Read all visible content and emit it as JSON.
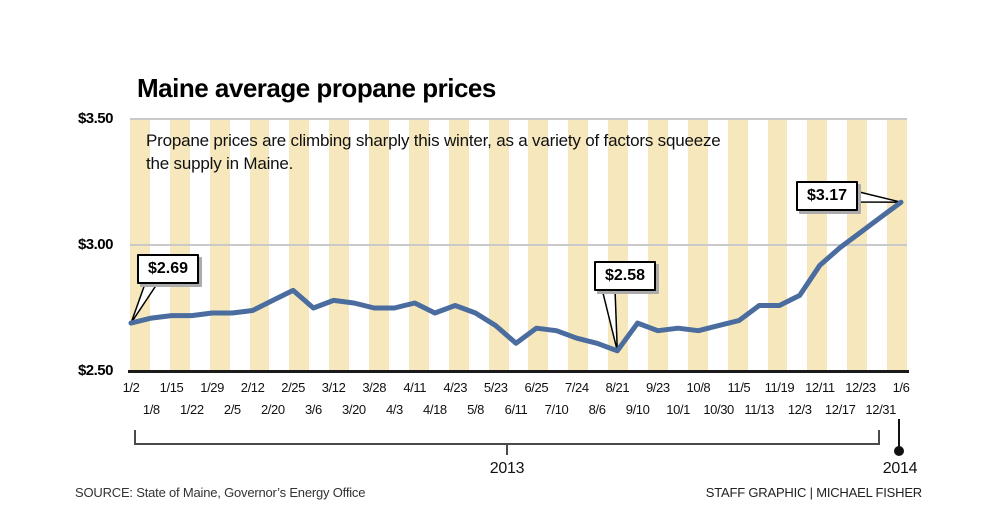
{
  "title": "Maine average propane prices",
  "subtitle": "Propane prices are climbing sharply this winter, as a variety of factors squeeze\nthe supply in Maine.",
  "source": "SOURCE: State of Maine, Governor’s Energy Office",
  "credit": "STAFF GRAPHIC | MICHAEL FISHER",
  "colors": {
    "stripe": "#F6E8BC",
    "stripe_alt": "#FFFFFF",
    "line": "#4B6C9E",
    "gridline": "#C9C9C9",
    "axis": "#1A1A1A"
  },
  "y_axis": {
    "ticks": [
      "$3.50",
      "$3.00",
      "$2.50"
    ]
  },
  "timeline": {
    "bracket_year": "2013",
    "end_year": "2014"
  },
  "chart_data": {
    "type": "line",
    "title": "Maine average propane prices",
    "ylim": [
      2.5,
      3.5
    ],
    "yticks": [
      3.5,
      3.0,
      2.5
    ],
    "ytick_labels": [
      "$3.50",
      "$3.00",
      "$2.50"
    ],
    "grid": "horizontal",
    "x": [
      "1/2",
      "1/8",
      "1/15",
      "1/22",
      "1/29",
      "2/5",
      "2/12",
      "2/20",
      "2/25",
      "3/6",
      "3/12",
      "3/20",
      "3/28",
      "4/3",
      "4/11",
      "4/18",
      "4/23",
      "5/8",
      "5/23",
      "6/11",
      "6/25",
      "7/10",
      "7/24",
      "8/6",
      "8/21",
      "9/10",
      "9/23",
      "10/1",
      "10/8",
      "10/30",
      "11/5",
      "11/13",
      "11/19",
      "12/3",
      "12/11",
      "12/17",
      "12/23",
      "12/31",
      "1/6"
    ],
    "values": [
      2.69,
      2.71,
      2.72,
      2.72,
      2.73,
      2.73,
      2.74,
      2.78,
      2.82,
      2.75,
      2.78,
      2.77,
      2.75,
      2.75,
      2.77,
      2.73,
      2.76,
      2.73,
      2.68,
      2.61,
      2.67,
      2.66,
      2.63,
      2.61,
      2.58,
      2.69,
      2.66,
      2.67,
      2.66,
      2.68,
      2.7,
      2.76,
      2.76,
      2.8,
      2.92,
      2.99,
      3.05,
      3.11,
      3.17
    ],
    "annotations": [
      {
        "label": "$2.69",
        "date": "1/2",
        "index": 0
      },
      {
        "label": "$2.58",
        "date": "8/21",
        "index": 24
      },
      {
        "label": "$3.17",
        "date": "1/6",
        "index": 38
      }
    ],
    "x_groups": [
      {
        "label": "2013",
        "from": "1/2",
        "to": "12/31"
      },
      {
        "label": "2014",
        "at": "1/6"
      }
    ]
  }
}
